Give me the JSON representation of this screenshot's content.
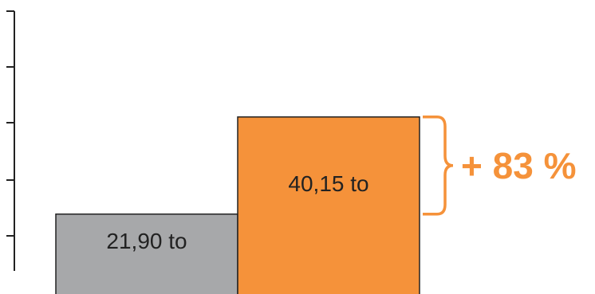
{
  "chart_data": {
    "type": "bar",
    "categories": [
      "",
      ""
    ],
    "values": [
      21.9,
      40.15
    ],
    "data_labels": [
      "21,90 to",
      "40,15 to"
    ],
    "colors": [
      "#a7a8aa",
      "#f5923a"
    ],
    "annotation": {
      "text": "+ 83 %",
      "color": "#f5923a"
    },
    "ylim": [
      0,
      50
    ],
    "grid": false,
    "legend": "none"
  }
}
